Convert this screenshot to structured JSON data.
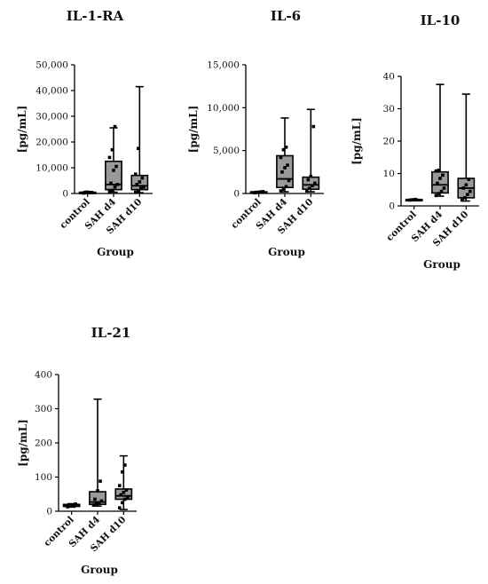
{
  "chart_data": [
    {
      "type": "box",
      "title": "IL-1-RA",
      "xlabel": "Group",
      "ylabel": "[pg/mL]",
      "categories": [
        "control",
        "SAH d4",
        "SAH d10"
      ],
      "ylim": [
        0,
        50000
      ],
      "yticks": [
        "0",
        "10,000",
        "20,000",
        "30,000",
        "40,000",
        "50,000"
      ],
      "yticks_values": [
        0,
        10000,
        20000,
        30000,
        40000,
        50000
      ],
      "boxes": [
        {
          "min": 100,
          "q1": 200,
          "median": 350,
          "q3": 500,
          "max": 700,
          "points": [
            150,
            250,
            300,
            400,
            450,
            550
          ]
        },
        {
          "min": 500,
          "q1": 1500,
          "median": 3500,
          "q3": 12500,
          "max": 25500,
          "points": [
            800,
            1200,
            2500,
            3500,
            4000,
            9000,
            10500,
            14000,
            17000,
            26000
          ]
        },
        {
          "min": 300,
          "q1": 1500,
          "median": 3000,
          "q3": 7000,
          "max": 41500,
          "points": [
            500,
            1000,
            2000,
            2500,
            3500,
            4500,
            6000,
            7500,
            17500
          ]
        }
      ]
    },
    {
      "type": "box",
      "title": "IL-6",
      "xlabel": "Group",
      "ylabel": "[pg/mL]",
      "categories": [
        "control",
        "SAH d4",
        "SAH d10"
      ],
      "ylim": [
        0,
        15000
      ],
      "yticks": [
        "0",
        "5,000",
        "10,000",
        "15,000"
      ],
      "yticks_values": [
        0,
        5000,
        10000,
        15000
      ],
      "boxes": [
        {
          "min": 50,
          "q1": 100,
          "median": 150,
          "q3": 200,
          "max": 250,
          "points": [
            80,
            120,
            180,
            220
          ]
        },
        {
          "min": 200,
          "q1": 700,
          "median": 1700,
          "q3": 4400,
          "max": 8800,
          "points": [
            300,
            500,
            800,
            1500,
            2500,
            3000,
            3300,
            4200,
            5100,
            5400
          ]
        },
        {
          "min": 200,
          "q1": 500,
          "median": 1000,
          "q3": 1900,
          "max": 9800,
          "points": [
            300,
            600,
            900,
            1200,
            1600,
            2000,
            7800
          ]
        }
      ]
    },
    {
      "type": "box",
      "title": "IL-10",
      "xlabel": "Group",
      "ylabel": "[pg/mL]",
      "categories": [
        "control",
        "SAH d4",
        "SAH d10"
      ],
      "ylim": [
        0,
        40
      ],
      "yticks": [
        "0",
        "10",
        "20",
        "30",
        "40"
      ],
      "yticks_values": [
        0,
        10,
        20,
        30,
        40
      ],
      "boxes": [
        {
          "min": 1.7,
          "q1": 1.8,
          "median": 1.9,
          "q3": 2.0,
          "max": 2.1,
          "points": [
            1.8,
            1.9,
            2.0
          ]
        },
        {
          "min": 3,
          "q1": 4,
          "median": 6.5,
          "q3": 10.5,
          "max": 37.5,
          "points": [
            3.2,
            3.8,
            4.5,
            5.5,
            7,
            8.5,
            9.5,
            10.8,
            11
          ]
        },
        {
          "min": 1.5,
          "q1": 2.5,
          "median": 5.5,
          "q3": 8.5,
          "max": 34.5,
          "points": [
            1.8,
            2.5,
            3.5,
            4.5,
            5.5,
            6.5,
            8.2
          ]
        }
      ]
    },
    {
      "type": "box",
      "title": "IL-21",
      "xlabel": "Group",
      "ylabel": "[pg/mL]",
      "categories": [
        "control",
        "SAH d4",
        "SAH d10"
      ],
      "ylim": [
        0,
        400
      ],
      "yticks": [
        "0",
        "100",
        "200",
        "300",
        "400"
      ],
      "yticks_values": [
        0,
        100,
        200,
        300,
        400
      ],
      "boxes": [
        {
          "min": 12,
          "q1": 14,
          "median": 17,
          "q3": 20,
          "max": 22,
          "points": [
            13,
            15,
            18,
            21
          ]
        },
        {
          "min": 15,
          "q1": 20,
          "median": 27,
          "q3": 57,
          "max": 328,
          "points": [
            18,
            22,
            25,
            30,
            35,
            60,
            88
          ]
        },
        {
          "min": 5,
          "q1": 35,
          "median": 45,
          "q3": 65,
          "max": 162,
          "points": [
            10,
            25,
            35,
            40,
            48,
            55,
            62,
            75,
            115,
            135
          ]
        }
      ]
    }
  ]
}
